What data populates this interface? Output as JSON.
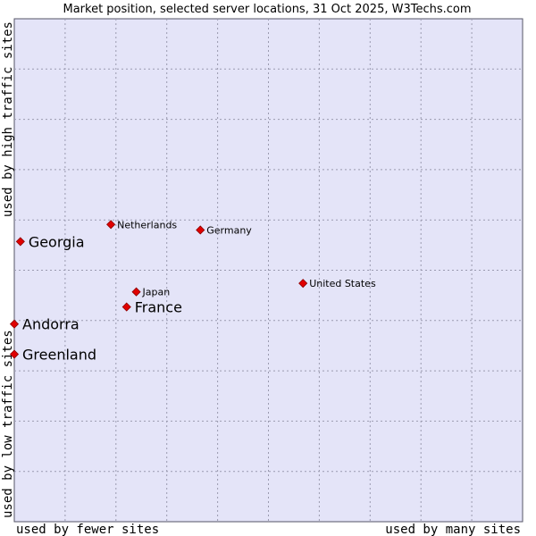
{
  "chart_data": {
    "type": "scatter",
    "title": "Market position, selected server locations, 31 Oct 2025, W3Techs.com",
    "xlabel_left": "used by fewer sites",
    "xlabel_right": "used by many sites",
    "ylabel_bottom": "used by low traffic sites",
    "ylabel_top": "used by high traffic sites",
    "xlim": [
      0,
      100
    ],
    "ylim": [
      0,
      100
    ],
    "grid": true,
    "points": [
      {
        "name": "Netherlands",
        "x": 19.0,
        "y": 59.1,
        "highlight": false
      },
      {
        "name": "Germany",
        "x": 36.6,
        "y": 58.0,
        "highlight": false
      },
      {
        "name": "Georgia",
        "x": 1.2,
        "y": 55.7,
        "highlight": true
      },
      {
        "name": "United States",
        "x": 56.8,
        "y": 47.4,
        "highlight": false
      },
      {
        "name": "Japan",
        "x": 24.0,
        "y": 45.7,
        "highlight": false
      },
      {
        "name": "France",
        "x": 22.1,
        "y": 42.7,
        "highlight": true
      },
      {
        "name": "Andorra",
        "x": 0.0,
        "y": 39.3,
        "highlight": true
      },
      {
        "name": "Greenland",
        "x": 0.0,
        "y": 33.3,
        "highlight": true
      }
    ]
  },
  "colors": {
    "plot_background": "#e4e4f8",
    "grid": "#9a9aaf",
    "point": "#e00000",
    "point_border": "#8b0000"
  }
}
